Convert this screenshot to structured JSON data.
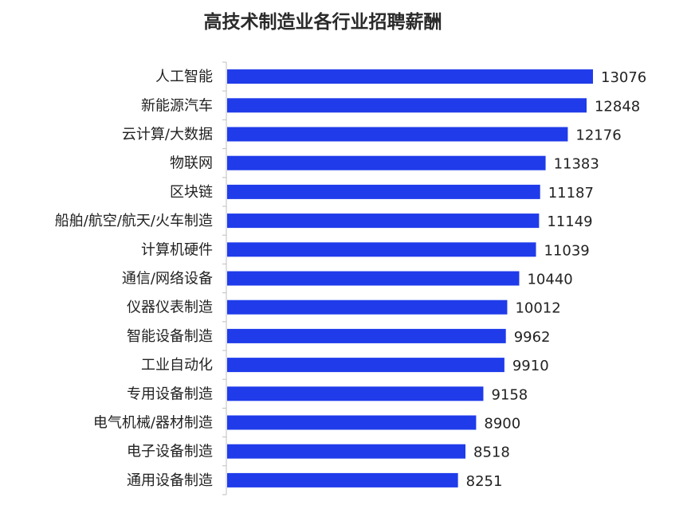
{
  "chart_data": {
    "type": "bar",
    "orientation": "horizontal",
    "title": "高技术制造业各行业招聘薪酬",
    "xlabel": "",
    "ylabel": "",
    "categories": [
      "人工智能",
      "新能源汽车",
      "云计算/大数据",
      "物联网",
      "区块链",
      "船舶/航空/航天/火车制造",
      "计算机硬件",
      "通信/网络设备",
      "仪器仪表制造",
      "智能设备制造",
      "工业自动化",
      "专用设备制造",
      "电气机械/器材制造",
      "电子设备制造",
      "通用设备制造"
    ],
    "values": [
      13076,
      12848,
      12176,
      11383,
      11187,
      11149,
      11039,
      10440,
      10012,
      9962,
      9910,
      9158,
      8900,
      8518,
      8251
    ],
    "xlim": [
      0,
      13076
    ],
    "grid": false,
    "bar_color": "#1f3bea"
  }
}
